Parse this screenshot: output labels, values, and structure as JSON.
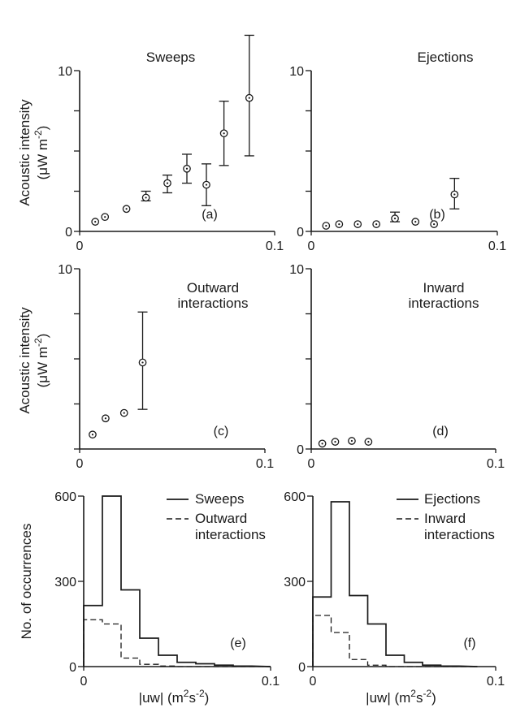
{
  "chart_data": [
    {
      "id": "a",
      "type": "scatter",
      "panel_label": "(a)",
      "title": "Sweeps",
      "ylabel": "Acoustic intensity",
      "ylabel_units": "(μW m",
      "xlim": [
        0,
        0.1
      ],
      "ylim": [
        0,
        10
      ],
      "xticks": [
        "0",
        "0.1"
      ],
      "yticks": [
        "0",
        "10"
      ],
      "points": [
        {
          "x": 0.008,
          "y": 0.6
        },
        {
          "x": 0.013,
          "y": 0.9
        },
        {
          "x": 0.024,
          "y": 1.4
        },
        {
          "x": 0.034,
          "y": 2.1,
          "lo": 1.9,
          "hi": 2.5
        },
        {
          "x": 0.045,
          "y": 3.0,
          "lo": 2.4,
          "hi": 3.5
        },
        {
          "x": 0.055,
          "y": 3.9,
          "lo": 3.0,
          "hi": 4.8
        },
        {
          "x": 0.065,
          "y": 2.9,
          "lo": 1.6,
          "hi": 4.2
        },
        {
          "x": 0.074,
          "y": 6.1,
          "lo": 4.1,
          "hi": 8.1
        },
        {
          "x": 0.087,
          "y": 8.3,
          "lo": 4.7,
          "hi": 12.2
        }
      ]
    },
    {
      "id": "b",
      "type": "scatter",
      "panel_label": "(b)",
      "title": "Ejections",
      "xlim": [
        0,
        0.1
      ],
      "ylim": [
        0,
        10
      ],
      "xticks": [
        "0",
        "0.1"
      ],
      "yticks": [
        "0",
        "10"
      ],
      "points": [
        {
          "x": 0.008,
          "y": 0.35
        },
        {
          "x": 0.015,
          "y": 0.45
        },
        {
          "x": 0.025,
          "y": 0.45
        },
        {
          "x": 0.035,
          "y": 0.45
        },
        {
          "x": 0.045,
          "y": 0.8,
          "lo": 0.6,
          "hi": 1.2
        },
        {
          "x": 0.056,
          "y": 0.6
        },
        {
          "x": 0.066,
          "y": 0.45
        },
        {
          "x": 0.077,
          "y": 2.3,
          "lo": 1.4,
          "hi": 3.3
        }
      ]
    },
    {
      "id": "c",
      "type": "scatter",
      "panel_label": "(c)",
      "title_lines": [
        "Outward",
        "interactions"
      ],
      "ylabel": "Acoustic intensity",
      "ylabel_units": "(μW m",
      "xlim": [
        0,
        0.1
      ],
      "ylim": [
        0,
        10
      ],
      "xticks": [
        "0",
        "0.1"
      ],
      "yticks": [
        "10"
      ],
      "points": [
        {
          "x": 0.007,
          "y": 0.8
        },
        {
          "x": 0.014,
          "y": 1.7
        },
        {
          "x": 0.024,
          "y": 2.0
        },
        {
          "x": 0.034,
          "y": 4.8,
          "lo": 2.2,
          "hi": 7.6
        }
      ]
    },
    {
      "id": "d",
      "type": "scatter",
      "panel_label": "(d)",
      "title_lines": [
        "Inward",
        "interactions"
      ],
      "xlim": [
        0,
        0.1
      ],
      "ylim": [
        0,
        10
      ],
      "xticks": [
        "0",
        "0.1"
      ],
      "yticks": [
        "0",
        "10"
      ],
      "points": [
        {
          "x": 0.006,
          "y": 0.3
        },
        {
          "x": 0.013,
          "y": 0.4
        },
        {
          "x": 0.022,
          "y": 0.45
        },
        {
          "x": 0.031,
          "y": 0.4
        }
      ]
    },
    {
      "id": "e",
      "type": "histogram",
      "panel_label": "(e)",
      "ylabel": "No. of occurrences",
      "xlabel": "|uw| (m",
      "xlim": [
        0,
        0.1
      ],
      "ylim": [
        0,
        600
      ],
      "xticks": [
        "0",
        "0.1"
      ],
      "yticks": [
        "0",
        "300",
        "600"
      ],
      "bin_edges": [
        0,
        0.01,
        0.02,
        0.03,
        0.04,
        0.05,
        0.06,
        0.07,
        0.08,
        0.09
      ],
      "series": [
        {
          "name": "Sweeps",
          "style": "solid",
          "values": [
            215,
            600,
            270,
            100,
            40,
            15,
            10,
            5,
            2
          ]
        },
        {
          "name_lines": [
            "Outward",
            "interactions"
          ],
          "style": "dashed",
          "values": [
            165,
            150,
            30,
            8,
            2,
            0,
            0,
            0,
            0
          ]
        }
      ]
    },
    {
      "id": "f",
      "type": "histogram",
      "panel_label": "(f)",
      "xlabel": "|uw| (m",
      "xlim": [
        0,
        0.1
      ],
      "ylim": [
        0,
        600
      ],
      "xticks": [
        "0",
        "0.1"
      ],
      "yticks": [
        "0",
        "300",
        "600"
      ],
      "bin_edges": [
        0,
        0.01,
        0.02,
        0.03,
        0.04,
        0.05,
        0.06,
        0.07,
        0.08
      ],
      "series": [
        {
          "name": "Ejections",
          "style": "solid",
          "values": [
            245,
            580,
            250,
            150,
            40,
            15,
            5,
            2
          ]
        },
        {
          "name_lines": [
            "Inward",
            "interactions"
          ],
          "style": "dashed",
          "values": [
            180,
            120,
            25,
            5,
            0,
            0,
            0,
            0
          ]
        }
      ]
    }
  ]
}
